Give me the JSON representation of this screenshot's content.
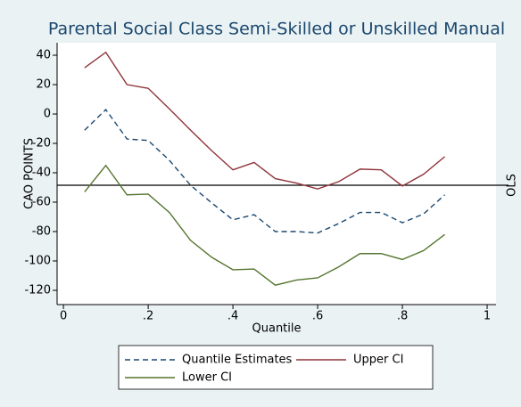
{
  "chart_data": {
    "type": "line",
    "title": "Parental Social Class Semi-Skilled or Unskilled Manual",
    "x_label": "Quantile",
    "y_label": "CAO POINTS",
    "x": [
      0.05,
      0.1,
      0.15,
      0.2,
      0.25,
      0.3,
      0.35,
      0.4,
      0.45,
      0.5,
      0.55,
      0.6,
      0.65,
      0.7,
      0.75,
      0.8,
      0.85,
      0.9
    ],
    "series": [
      {
        "name": "Quantile Estimates",
        "color": "#1a476f",
        "dash": true,
        "values": [
          -11,
          3,
          -17,
          -18,
          -31.5,
          -48.5,
          -60.5,
          -72,
          -68.5,
          -80,
          -80,
          -81,
          -74.5,
          -67,
          -67,
          -74,
          -68,
          -55
        ]
      },
      {
        "name": "Upper CI",
        "color": "#90353b",
        "dash": false,
        "values": [
          31.5,
          42,
          20,
          17.5,
          3.5,
          -11,
          -25,
          -38,
          -33,
          -44,
          -47,
          -51,
          -46,
          -37.5,
          -38,
          -49,
          -41,
          -29
        ]
      },
      {
        "name": "Lower CI",
        "color": "#55752f",
        "dash": false,
        "values": [
          -53,
          -35,
          -55,
          -54.5,
          -67,
          -86,
          -97.5,
          -106,
          -105.5,
          -116.5,
          -113,
          -111.5,
          -104,
          -95,
          -95,
          -99,
          -93,
          -82
        ]
      }
    ],
    "reference_line": {
      "value": -48.5,
      "label": "OLS"
    },
    "xlim": [
      -0.015,
      1.021
    ],
    "ylim": [
      -129.7,
      48.5
    ],
    "xticks": [
      0,
      {
        "value": 0.2,
        "label": ".2"
      },
      {
        "value": 0.4,
        "label": ".4"
      },
      {
        "value": 0.6,
        "label": ".6"
      },
      {
        "value": 0.8,
        "label": ".8"
      },
      1
    ],
    "yticks": [
      40,
      20,
      0,
      -20,
      -40,
      -60,
      -80,
      -100,
      -120
    ]
  }
}
